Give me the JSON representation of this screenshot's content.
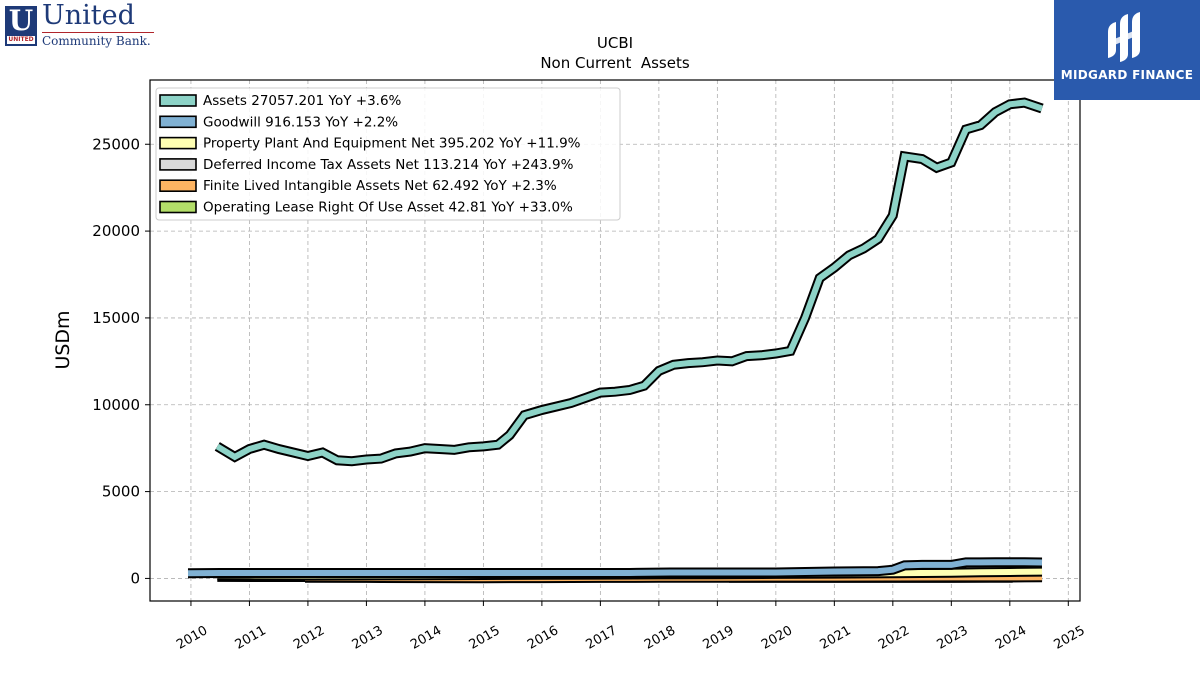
{
  "header": {
    "brand": {
      "name": "United",
      "sub": "Community Bank.",
      "mark_letter": "U",
      "mark_small": "UNITED"
    },
    "watermark": {
      "name": "MIDGARD FINANCE",
      "icon": "midgard-logo-icon",
      "bg": "#2a5aad"
    }
  },
  "chart_data": {
    "type": "line",
    "title": "UCBI",
    "subtitle": "Non Current  Assets",
    "ylabel": "USDm",
    "xlabel": "",
    "xlim": [
      2009.3,
      2025.2
    ],
    "ylim": [
      -1300,
      28700
    ],
    "yticks": [
      0,
      5000,
      10000,
      15000,
      20000,
      25000
    ],
    "xticks": [
      2010,
      2011,
      2012,
      2013,
      2014,
      2015,
      2016,
      2017,
      2018,
      2019,
      2020,
      2021,
      2022,
      2023,
      2024,
      2025
    ],
    "grid": true,
    "legend_position": "top-left",
    "series": [
      {
        "name": "Assets",
        "legend": "Assets  27057.201 YoY +3.6%",
        "color": "#8dd3c7",
        "x": [
          2010.45,
          2010.75,
          2011.0,
          2011.25,
          2011.5,
          2011.75,
          2012.0,
          2012.25,
          2012.5,
          2012.75,
          2013.0,
          2013.25,
          2013.5,
          2013.75,
          2014.0,
          2014.25,
          2014.5,
          2014.75,
          2015.0,
          2015.25,
          2015.45,
          2015.7,
          2016.0,
          2016.25,
          2016.5,
          2016.75,
          2017.0,
          2017.25,
          2017.5,
          2017.75,
          2018.0,
          2018.25,
          2018.5,
          2018.75,
          2019.0,
          2019.25,
          2019.5,
          2019.75,
          2020.0,
          2020.25,
          2020.5,
          2020.75,
          2021.0,
          2021.25,
          2021.5,
          2021.75,
          2022.0,
          2022.2,
          2022.5,
          2022.75,
          2023.0,
          2023.25,
          2023.5,
          2023.75,
          2024.0,
          2024.25,
          2024.55
        ],
        "y": [
          7600,
          7000,
          7450,
          7700,
          7450,
          7250,
          7050,
          7250,
          6800,
          6750,
          6850,
          6900,
          7200,
          7300,
          7500,
          7450,
          7400,
          7550,
          7600,
          7700,
          8250,
          9400,
          9700,
          9900,
          10100,
          10400,
          10700,
          10750,
          10850,
          11100,
          11950,
          12300,
          12400,
          12450,
          12550,
          12500,
          12800,
          12850,
          12950,
          13100,
          15000,
          17300,
          17900,
          18600,
          19000,
          19550,
          20900,
          24300,
          24150,
          23650,
          23950,
          25850,
          26100,
          26850,
          27300,
          27400,
          27057.201
        ]
      },
      {
        "name": "Goodwill",
        "legend": "Goodwill  916.153 YoY +2.2%",
        "color": "#80b1d3",
        "x": [
          2009.95,
          2010.5,
          2012.0,
          2015.0,
          2017.5,
          2018.2,
          2019.0,
          2020.0,
          2021.0,
          2021.75,
          2022.0,
          2022.2,
          2022.5,
          2022.75,
          2023.0,
          2023.25,
          2023.5,
          2023.75,
          2024.0,
          2024.25,
          2024.55
        ],
        "y": [
          300,
          310,
          310,
          310,
          310,
          340,
          340,
          340,
          400,
          420,
          500,
          750,
          780,
          780,
          780,
          920,
          920,
          930,
          930,
          930,
          916.153
        ]
      },
      {
        "name": "Property Plant And Equipment Net",
        "legend": "Property Plant And Equipment Net  395.202 YoY +11.9%",
        "color": "#ffffb3",
        "x": [
          2010.45,
          2011.0,
          2012.0,
          2013.0,
          2014.0,
          2015.0,
          2016.0,
          2017.0,
          2018.0,
          2019.0,
          2020.0,
          2021.0,
          2022.0,
          2023.0,
          2023.5,
          2024.0,
          2024.55
        ],
        "y": [
          190,
          180,
          170,
          175,
          185,
          200,
          210,
          220,
          230,
          240,
          260,
          280,
          300,
          330,
          350,
          370,
          395.202
        ]
      },
      {
        "name": "Deferred Income Tax Assets Net",
        "legend": "Deferred Income Tax Assets Net  113.214 YoY +243.9%",
        "color": "#d9d9d9",
        "x": [
          2010.45,
          2012.0,
          2014.0,
          2016.0,
          2018.0,
          2020.0,
          2022.0,
          2023.0,
          2024.0,
          2024.55
        ],
        "y": [
          90,
          80,
          75,
          70,
          60,
          50,
          40,
          35,
          60,
          113.214
        ]
      },
      {
        "name": "Finite Lived Intangible Assets Net",
        "legend": "Finite Lived Intangible Assets Net  62.492 YoY +2.3%",
        "color": "#fdb462",
        "x": [
          2011.95,
          2013.0,
          2014.0,
          2015.0,
          2016.0,
          2017.0,
          2018.0,
          2019.0,
          2020.0,
          2021.0,
          2022.0,
          2023.0,
          2024.0,
          2024.55
        ],
        "y": [
          40,
          30,
          20,
          10,
          20,
          30,
          35,
          40,
          45,
          50,
          55,
          60,
          61,
          62.492
        ]
      },
      {
        "name": "Operating Lease Right Of Use Asset",
        "legend": "Operating Lease Right Of Use Asset  42.81 YoY +33.0%",
        "color": "#b3de69",
        "x": [
          2019.2,
          2020.0,
          2021.0,
          2022.0,
          2023.0,
          2024.05
        ],
        "y": [
          40,
          38,
          35,
          36,
          38,
          42.81
        ]
      }
    ]
  }
}
